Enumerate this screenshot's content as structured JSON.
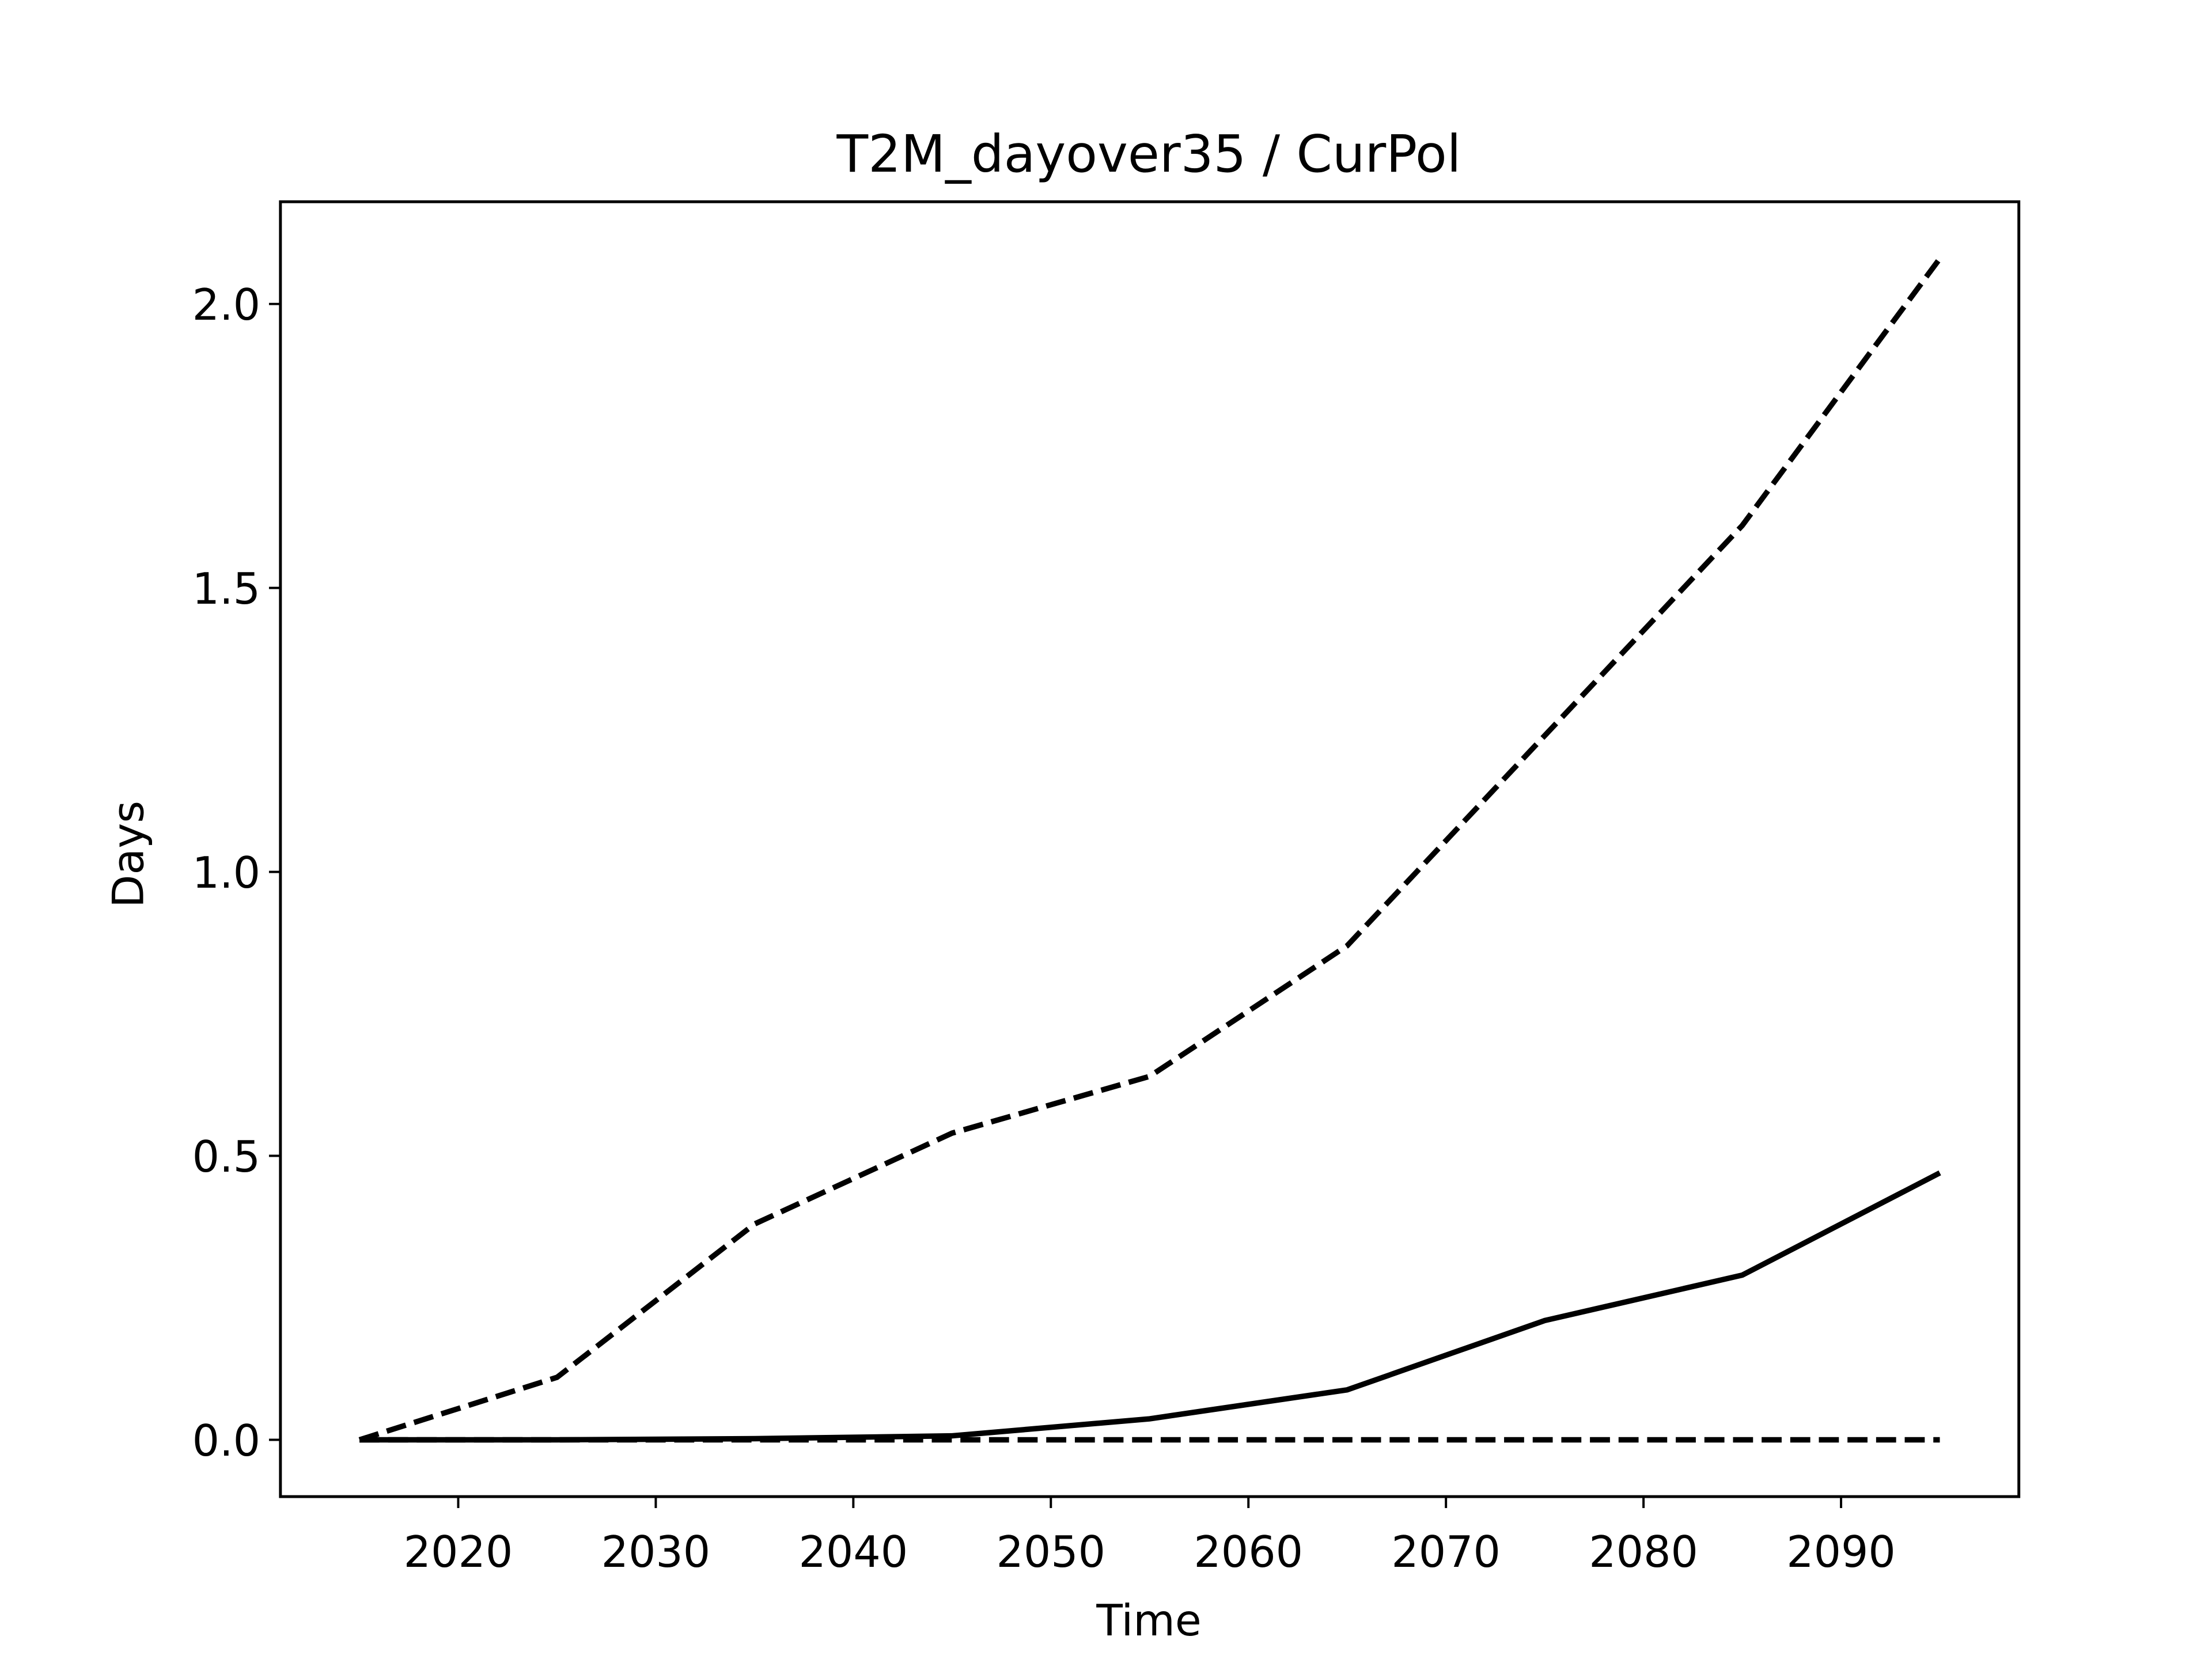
{
  "chart_data": {
    "type": "line",
    "title": "T2M_dayover35 / CurPol",
    "xlabel": "Time",
    "ylabel": "Days",
    "x": [
      2015,
      2025,
      2035,
      2045,
      2055,
      2065,
      2075,
      2085,
      2095
    ],
    "series": [
      {
        "color": "#000000",
        "linestyle": "dashed",
        "values": [
          0,
          0.11,
          0.38,
          0.54,
          0.64,
          0.87,
          1.24,
          1.61,
          2.08
        ]
      },
      {
        "color": "#000000",
        "linestyle": "solid",
        "values": [
          0,
          0,
          0.002,
          0.007,
          0.037,
          0.088,
          0.21,
          0.29,
          0.47
        ]
      },
      {
        "color": "#000000",
        "linestyle": "dashed",
        "values": [
          0,
          0,
          0,
          0,
          0,
          0,
          0,
          0,
          0
        ]
      }
    ],
    "xlim": [
      2011,
      2099
    ],
    "ylim": [
      -0.1,
      2.18
    ],
    "xticks": [
      2020,
      2030,
      2040,
      2050,
      2060,
      2070,
      2080,
      2090
    ],
    "yticks": [
      {
        "value": 0,
        "label": "0.0"
      },
      {
        "value": 0.5,
        "label": "0.5"
      },
      {
        "value": 1,
        "label": "1.0"
      },
      {
        "value": 1.5,
        "label": "1.5"
      },
      {
        "value": 2,
        "label": "2.0"
      }
    ],
    "grid": false
  }
}
